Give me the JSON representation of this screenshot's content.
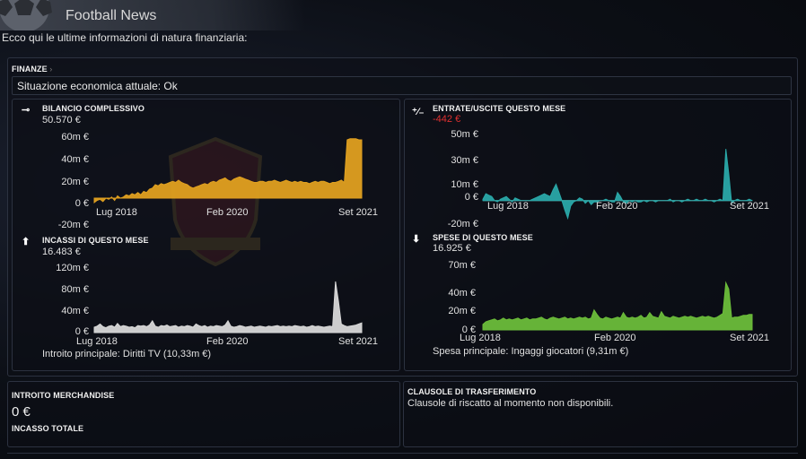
{
  "app": {
    "title": "Football News",
    "subtitle": "Ecco qui le ultime informazioni di natura finanziaria:"
  },
  "finanze": {
    "header": "FINANZE",
    "status": "Situazione economica attuale: Ok"
  },
  "charts": {
    "bilancio": {
      "title": "BILANCIO COMPLESSIVO",
      "value": "50.570 €",
      "yticks": [
        "60m €",
        "40m €",
        "20m €",
        "0 €",
        "-20m €"
      ],
      "xticks": [
        "Lug 2018",
        "Feb 2020",
        "Set 2021"
      ],
      "color": "#e0a020",
      "icon": "balance-icon"
    },
    "entrate_uscite": {
      "title": "ENTRATE/USCITE QUESTO MESE",
      "value": "-442 €",
      "yticks": [
        "50m €",
        "30m €",
        "10m €",
        "0 €",
        "-20m €"
      ],
      "xticks": [
        "Lug 2018",
        "Feb 2020",
        "Set 2021"
      ],
      "color": "#2aa8a8",
      "icon": "plus-minus-icon"
    },
    "incassi": {
      "title": "INCASSI DI QUESTO MESE",
      "value": "16.483 €",
      "yticks": [
        "120m €",
        "80m €",
        "40m €",
        "0 €"
      ],
      "xticks": [
        "Lug 2018",
        "Feb 2020",
        "Set 2021"
      ],
      "note": "Introito principale:  Diritti TV (10,33m €)",
      "color": "#d8d8d8",
      "icon": "arrow-up-icon"
    },
    "spese": {
      "title": "SPESE DI QUESTO MESE",
      "value": "16.925 €",
      "yticks": [
        "70m €",
        "40m €",
        "20m €",
        "0 €"
      ],
      "xticks": [
        "Lug 2018",
        "Feb 2020",
        "Set 2021"
      ],
      "note": "Spesa principale:  Ingaggi giocatori (9,31m €)",
      "color": "#6cbd3a",
      "icon": "arrow-down-icon"
    }
  },
  "merchandise": {
    "header": "INTROITO MERCHANDISE",
    "value": "0 €",
    "header2": "INCASSO TOTALE"
  },
  "clausole": {
    "header": "CLAUSOLE DI TRASFERIMENTO",
    "text": "Clausole di riscatto al momento non disponibili."
  },
  "chart_data": [
    {
      "type": "area",
      "title": "BILANCIO COMPLESSIVO",
      "x_range": [
        "Lug 2018",
        "Set 2021"
      ],
      "ylim": [
        -20,
        60
      ],
      "unit": "m €",
      "values": [
        -4,
        -2,
        -1,
        -3,
        0,
        -1,
        1,
        -2,
        2,
        0,
        1,
        3,
        2,
        4,
        3,
        5,
        3,
        6,
        5,
        8,
        9,
        12,
        11,
        13,
        12,
        13,
        14,
        15,
        14,
        16,
        14,
        13,
        12,
        10,
        9,
        10,
        11,
        12,
        13,
        12,
        14,
        15,
        14,
        16,
        17,
        18,
        16,
        15,
        17,
        18,
        19,
        18,
        17,
        16,
        15,
        14,
        14,
        15,
        15,
        14,
        15,
        15,
        16,
        15,
        14,
        15,
        16,
        15,
        14,
        15,
        14,
        15,
        14,
        14,
        13,
        14,
        15,
        14,
        15,
        15,
        14,
        13,
        14,
        14,
        15,
        16,
        14,
        52,
        53,
        53,
        53,
        52,
        52
      ]
    },
    {
      "type": "area",
      "title": "ENTRATE/USCITE QUESTO MESE",
      "x_range": [
        "Lug 2018",
        "Set 2021"
      ],
      "ylim": [
        -20,
        50
      ],
      "unit": "m €",
      "values": [
        1,
        5,
        4,
        3,
        0,
        -1,
        1,
        2,
        3,
        1,
        -1,
        2,
        1,
        0,
        0,
        0,
        0,
        1,
        2,
        3,
        4,
        5,
        4,
        3,
        8,
        12,
        6,
        0,
        -7,
        -13,
        -4,
        -1,
        0,
        2,
        1,
        -2,
        0,
        -3,
        -1,
        -1,
        0,
        0,
        1,
        0,
        -1,
        -1,
        6,
        3,
        -1,
        -2,
        0,
        -1,
        0,
        -1,
        -1,
        0,
        -1,
        0,
        0,
        -1,
        0,
        0,
        0,
        0,
        1,
        -1,
        0,
        0,
        -1,
        0,
        1,
        0,
        0,
        1,
        0,
        0,
        1,
        0,
        0,
        -1,
        0,
        1,
        0,
        38,
        20,
        -2,
        0,
        1,
        0,
        0,
        0,
        1,
        0
      ]
    },
    {
      "type": "area",
      "title": "INCASSI DI QUESTO MESE",
      "x_range": [
        "Lug 2018",
        "Set 2021"
      ],
      "ylim": [
        0,
        120
      ],
      "unit": "m €",
      "values": [
        10,
        12,
        16,
        11,
        9,
        12,
        13,
        10,
        17,
        11,
        13,
        12,
        10,
        11,
        9,
        13,
        12,
        13,
        11,
        14,
        22,
        12,
        10,
        13,
        12,
        14,
        11,
        12,
        13,
        10,
        12,
        11,
        13,
        12,
        10,
        16,
        13,
        11,
        13,
        10,
        12,
        11,
        13,
        12,
        11,
        14,
        22,
        12,
        10,
        11,
        13,
        12,
        10,
        11,
        12,
        10,
        11,
        12,
        11,
        10,
        12,
        11,
        12,
        13,
        11,
        12,
        11,
        12,
        11,
        13,
        12,
        11,
        12,
        10,
        11,
        13,
        11,
        12,
        11,
        10,
        11,
        12,
        11,
        95,
        58,
        16,
        13,
        11,
        12,
        13,
        14,
        16,
        18
      ]
    },
    {
      "type": "area",
      "title": "SPESE DI QUESTO MESE",
      "x_range": [
        "Lug 2018",
        "Set 2021"
      ],
      "ylim": [
        0,
        70
      ],
      "unit": "m €",
      "values": [
        6,
        9,
        10,
        11,
        12,
        10,
        11,
        13,
        11,
        12,
        11,
        12,
        13,
        11,
        12,
        13,
        11,
        12,
        12,
        13,
        14,
        12,
        11,
        13,
        14,
        13,
        12,
        13,
        14,
        12,
        13,
        12,
        13,
        14,
        13,
        14,
        12,
        13,
        22,
        17,
        13,
        12,
        14,
        13,
        12,
        13,
        14,
        13,
        19,
        14,
        13,
        14,
        13,
        14,
        16,
        13,
        14,
        19,
        15,
        14,
        13,
        20,
        15,
        14,
        13,
        15,
        14,
        13,
        14,
        15,
        14,
        15,
        14,
        13,
        14,
        15,
        14,
        15,
        14,
        13,
        14,
        16,
        18,
        52,
        45,
        13,
        14,
        14,
        15,
        16,
        16,
        17,
        17
      ]
    }
  ]
}
